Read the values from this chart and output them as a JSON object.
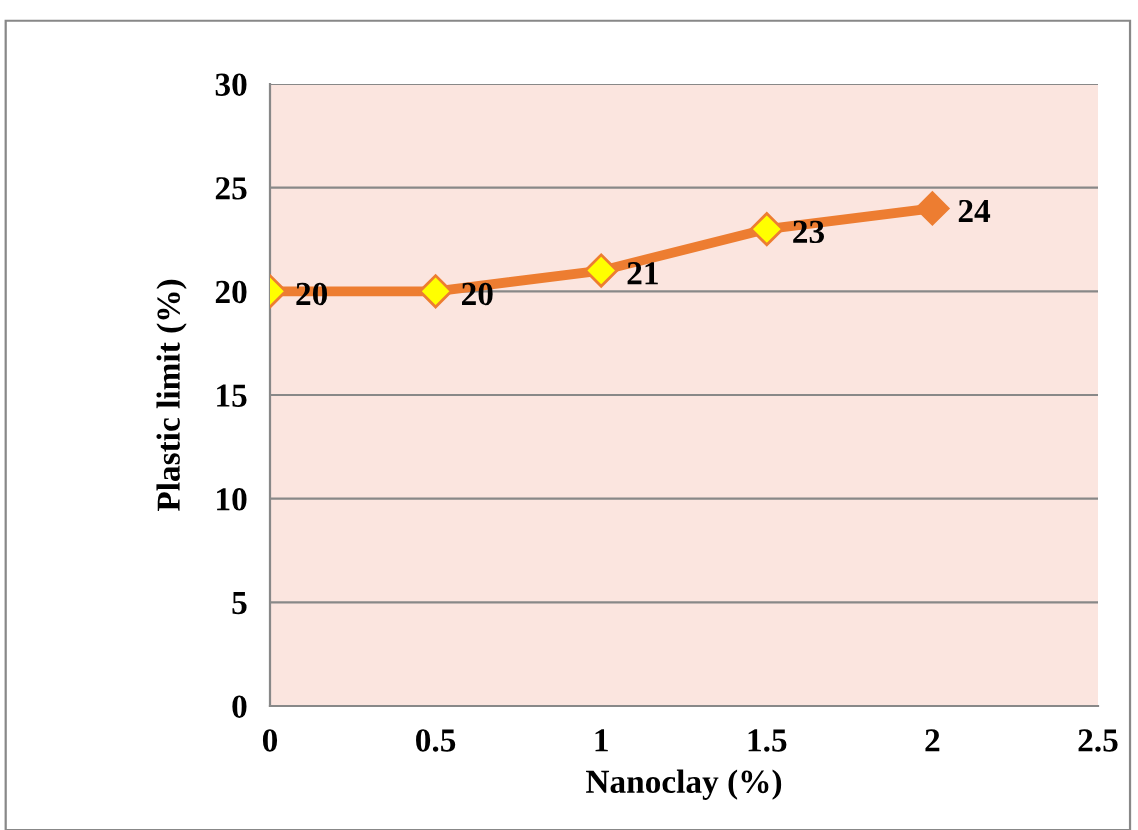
{
  "chart_data": {
    "type": "line",
    "xlabel": "Nanoclay (%)",
    "ylabel": "Plastic limit (%)",
    "x": [
      0,
      0.5,
      1,
      1.5,
      2
    ],
    "series": [
      {
        "color": "#ed7d31",
        "values": [
          20,
          20,
          21,
          23,
          24
        ],
        "colors": [
          "#ffff00",
          "#ffff00",
          "#ffff00",
          "#ffff00",
          "#ed7d31"
        ]
      }
    ],
    "xlim": [
      0,
      2.5
    ],
    "xticks": [
      0,
      0.5,
      1,
      1.5,
      2,
      2.5
    ],
    "ylim": [
      0,
      30
    ],
    "yticks": [
      0,
      5,
      10,
      15,
      20,
      25,
      30
    ],
    "grid": "y",
    "marker": "diamond",
    "line_style": "solid",
    "data_labels": true,
    "legend": false
  }
}
